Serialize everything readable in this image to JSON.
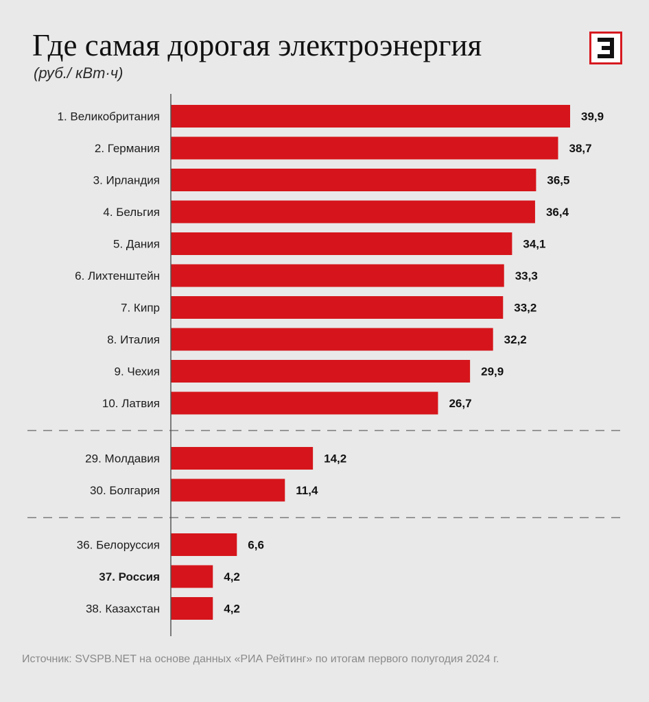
{
  "header": {
    "title": "Где самая дорогая электроэнергия",
    "subtitle": "(руб./ кВт·ч)"
  },
  "logo": {
    "icon": "e-logo-icon",
    "color": "#d71920"
  },
  "footer": {
    "source": "Источник: SVSPB.NET на основе данных «РИА Рейтинг» по итогам первого полугодия 2024 г."
  },
  "colors": {
    "bar": "#d5151b",
    "background": "#e9e9e9",
    "axis": "#555555",
    "label": "#1c1c1c",
    "value": "#111111"
  },
  "chart_data": {
    "type": "bar",
    "orientation": "horizontal",
    "title": "Где самая дорогая электроэнергия",
    "subtitle": "(руб./ кВт·ч)",
    "unit": "руб./ кВт·ч",
    "xlim": [
      0,
      39.9
    ],
    "grid": false,
    "groups": [
      {
        "items": [
          {
            "label": "1. Великобритания",
            "value": 39.9,
            "value_label": "39,9",
            "highlight": false
          },
          {
            "label": "2. Германия",
            "value": 38.7,
            "value_label": "38,7",
            "highlight": false
          },
          {
            "label": "3. Ирландия",
            "value": 36.5,
            "value_label": "36,5",
            "highlight": false
          },
          {
            "label": "4. Бельгия",
            "value": 36.4,
            "value_label": "36,4",
            "highlight": false
          },
          {
            "label": "5. Дания",
            "value": 34.1,
            "value_label": "34,1",
            "highlight": false
          },
          {
            "label": "6. Лихтенштейн",
            "value": 33.3,
            "value_label": "33,3",
            "highlight": false
          },
          {
            "label": "7. Кипр",
            "value": 33.2,
            "value_label": "33,2",
            "highlight": false
          },
          {
            "label": "8. Италия",
            "value": 32.2,
            "value_label": "32,2",
            "highlight": false
          },
          {
            "label": "9. Чехия",
            "value": 29.9,
            "value_label": "29,9",
            "highlight": false
          },
          {
            "label": "10. Латвия",
            "value": 26.7,
            "value_label": "26,7",
            "highlight": false
          }
        ]
      },
      {
        "items": [
          {
            "label": "29. Молдавия",
            "value": 14.2,
            "value_label": "14,2",
            "highlight": false
          },
          {
            "label": "30. Болгария",
            "value": 11.4,
            "value_label": "11,4",
            "highlight": false
          }
        ]
      },
      {
        "items": [
          {
            "label": "36. Белоруссия",
            "value": 6.6,
            "value_label": "6,6",
            "highlight": false
          },
          {
            "label": "37. Россия",
            "value": 4.2,
            "value_label": "4,2",
            "highlight": true
          },
          {
            "label": "38. Казахстан",
            "value": 4.2,
            "value_label": "4,2",
            "highlight": false
          }
        ]
      }
    ]
  }
}
